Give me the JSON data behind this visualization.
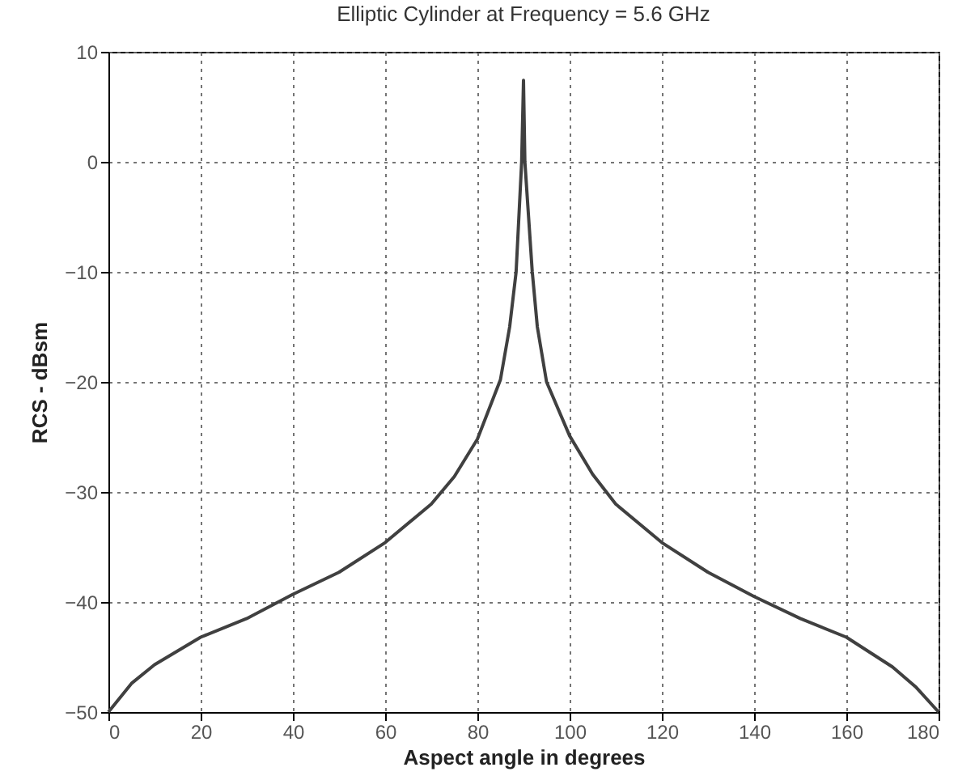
{
  "chart_data": {
    "type": "line",
    "title": "Elliptic Cylinder at Frequency = 5.6  GHz",
    "xlabel": "Aspect angle in degrees",
    "ylabel": "RCS - dBsm",
    "x": [
      0,
      5,
      10,
      20,
      30,
      40,
      50,
      60,
      70,
      75,
      80,
      85,
      87,
      88.4,
      89.6,
      90,
      90.3,
      91.9,
      93,
      95,
      100,
      105,
      110,
      120,
      130,
      140,
      150,
      160,
      170,
      175,
      180
    ],
    "series": [
      {
        "color": "#404040",
        "values": [
          -50,
          -47.4,
          -45.7,
          -43.2,
          -41.5,
          -39.3,
          -37.3,
          -34.6,
          -31.1,
          -28.6,
          -25.2,
          -19.8,
          -15,
          -10,
          0,
          7.4,
          0,
          -10,
          -15,
          -20,
          -24.9,
          -28.4,
          -31.1,
          -34.6,
          -37.3,
          -39.5,
          -41.5,
          -43.2,
          -45.9,
          -47.7,
          -50
        ]
      }
    ],
    "xlim": [
      0,
      180
    ],
    "xticks": [
      0,
      20,
      40,
      60,
      80,
      100,
      120,
      140,
      160,
      180
    ],
    "ylim": [
      -50,
      10
    ],
    "yticks": [
      -50,
      -40,
      -30,
      -20,
      -10,
      0,
      10
    ],
    "grid": true,
    "line_style": "solid",
    "legend": false
  }
}
